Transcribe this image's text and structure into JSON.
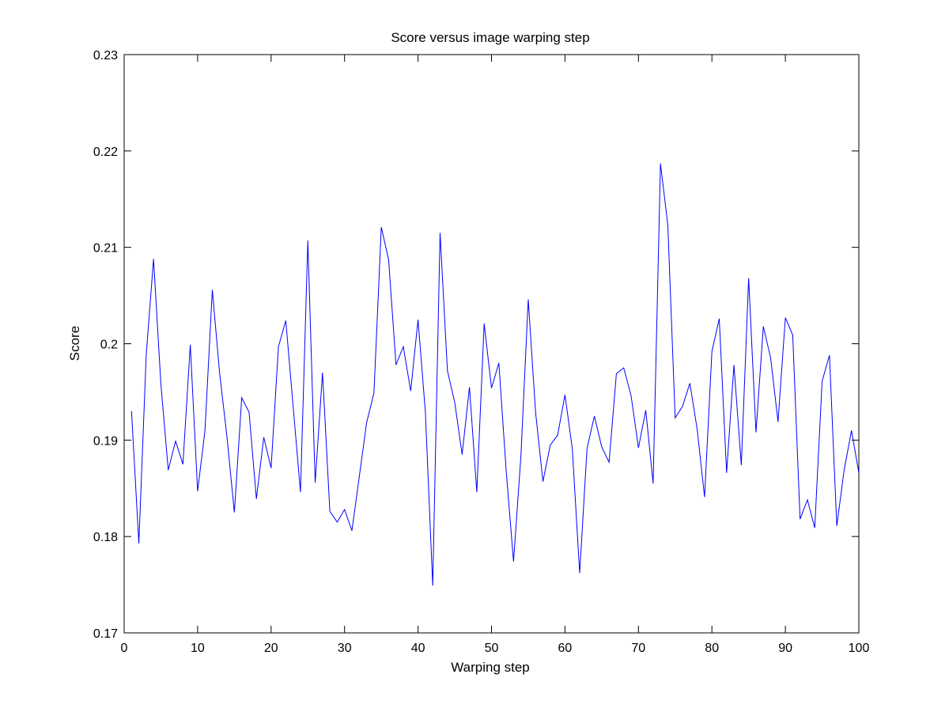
{
  "chart_data": {
    "type": "line",
    "title": "Score versus image warping step",
    "xlabel": "Warping step",
    "ylabel": "Score",
    "xlim": [
      0,
      100
    ],
    "ylim": [
      0.17,
      0.23
    ],
    "xticks": [
      0,
      10,
      20,
      30,
      40,
      50,
      60,
      70,
      80,
      90,
      100
    ],
    "xtick_labels": [
      "0",
      "10",
      "20",
      "30",
      "40",
      "50",
      "60",
      "70",
      "80",
      "90",
      "100"
    ],
    "yticks": [
      0.17,
      0.18,
      0.19,
      0.2,
      0.21,
      0.22,
      0.23
    ],
    "ytick_labels": [
      "0.17",
      "0.18",
      "0.19",
      "0.2",
      "0.21",
      "0.22",
      "0.23"
    ],
    "grid": false,
    "legend": "none",
    "series": [
      {
        "color": "#0000ff",
        "x": [
          1,
          2,
          3,
          4,
          5,
          6,
          7,
          8,
          9,
          10,
          11,
          12,
          13,
          14,
          15,
          16,
          17,
          18,
          19,
          20,
          21,
          22,
          23,
          24,
          25,
          26,
          27,
          28,
          29,
          30,
          31,
          32,
          33,
          34,
          35,
          36,
          37,
          38,
          39,
          40,
          41,
          42,
          43,
          44,
          45,
          46,
          47,
          48,
          49,
          50,
          51,
          52,
          53,
          54,
          55,
          56,
          57,
          58,
          59,
          60,
          61,
          62,
          63,
          64,
          65,
          66,
          67,
          68,
          69,
          70,
          71,
          72,
          73,
          74,
          75,
          76,
          77,
          78,
          79,
          80,
          81,
          82,
          83,
          84,
          85,
          86,
          87,
          88,
          89,
          90,
          91,
          92,
          93,
          94,
          95,
          96,
          97,
          98,
          99,
          100
        ],
        "y": [
          0.193,
          0.1793,
          0.1988,
          0.2088,
          0.1958,
          0.1869,
          0.1899,
          0.1875,
          0.1999,
          0.1847,
          0.191,
          0.2056,
          0.1969,
          0.1903,
          0.1825,
          0.1944,
          0.1929,
          0.1839,
          0.1903,
          0.1871,
          0.1997,
          0.2024,
          0.1935,
          0.1846,
          0.2107,
          0.1856,
          0.197,
          0.1826,
          0.1815,
          0.1828,
          0.1806,
          0.1862,
          0.1918,
          0.1949,
          0.2121,
          0.2087,
          0.1978,
          0.1997,
          0.1951,
          0.2025,
          0.1929,
          0.1749,
          0.2115,
          0.1972,
          0.1939,
          0.1885,
          0.1955,
          0.1846,
          0.2021,
          0.1954,
          0.198,
          0.1868,
          0.1774,
          0.1883,
          0.2046,
          0.1929,
          0.1857,
          0.1895,
          0.1905,
          0.1947,
          0.1891,
          0.1762,
          0.1891,
          0.1925,
          0.1893,
          0.1877,
          0.1969,
          0.1975,
          0.1946,
          0.1892,
          0.1931,
          0.1855,
          0.2187,
          0.2123,
          0.1923,
          0.1935,
          0.1959,
          0.1911,
          0.1841,
          0.1992,
          0.2026,
          0.1866,
          0.1978,
          0.1874,
          0.2068,
          0.1908,
          0.2018,
          0.1985,
          0.1919,
          0.2027,
          0.2009,
          0.1818,
          0.1838,
          0.1809,
          0.1961,
          0.1988,
          0.1811,
          0.1869,
          0.191,
          0.1866
        ]
      }
    ]
  }
}
